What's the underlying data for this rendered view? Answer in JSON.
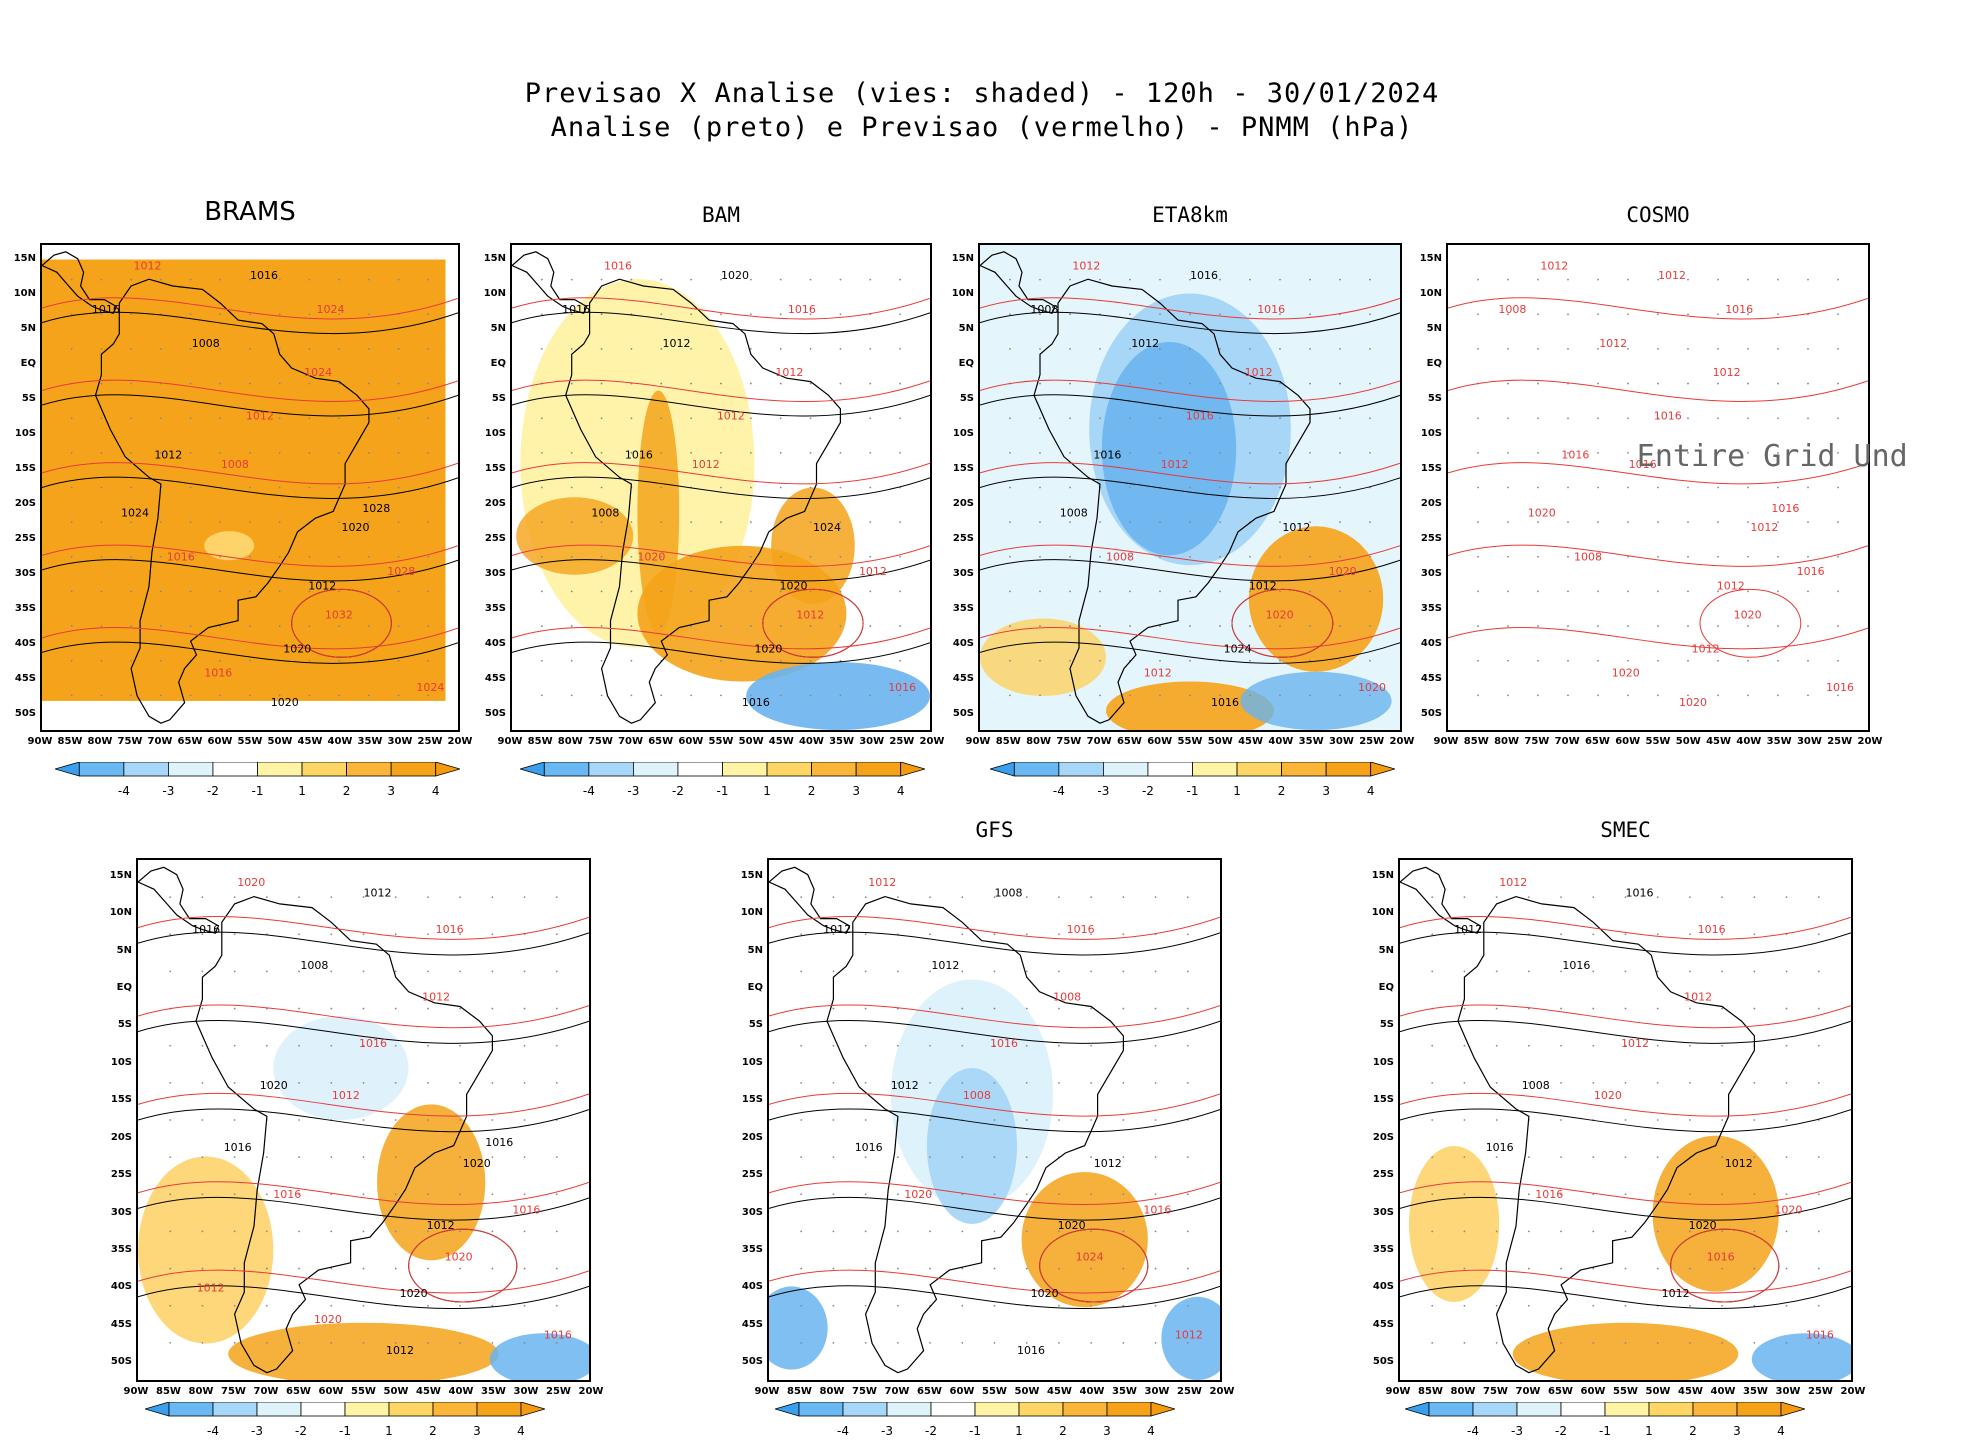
{
  "header": {
    "title_line1": "Previsao X Analise (vies: shaded) - 120h - 30/01/2024",
    "title_line2": "Analise (preto) e Previsao (vermelho) - PNMM (hPa)"
  },
  "axes": {
    "lat_labels": [
      "15N",
      "10N",
      "5N",
      "EQ",
      "5S",
      "10S",
      "15S",
      "20S",
      "25S",
      "30S",
      "35S",
      "40S",
      "45S",
      "50S"
    ],
    "lon_labels": [
      "90W",
      "85W",
      "80W",
      "75W",
      "70W",
      "65W",
      "60W",
      "55W",
      "50W",
      "45W",
      "40W",
      "35W",
      "30W",
      "25W",
      "20W"
    ]
  },
  "colorbar": {
    "labels": [
      "-4",
      "-3",
      "-2",
      "-1",
      "1",
      "2",
      "3",
      "4"
    ],
    "colors": [
      "#3aa0ee",
      "#6ab8f2",
      "#a6d6f8",
      "#dff3fb",
      "#ffffff",
      "#fff3a6",
      "#fdd666",
      "#fbb63a",
      "#f5a21a",
      "#f39a10"
    ]
  },
  "colors": {
    "analysis_contour": "#000000",
    "forecast_contour": "#e83a3a",
    "bias_strong_positive": "#f5a310",
    "coastline": "#000000"
  },
  "panels": [
    {
      "id": "brams",
      "title": "BRAMS",
      "style": "full-positive",
      "contour_labels": [
        "1012",
        "1016",
        "1024",
        "1016",
        "1024",
        "1008",
        "1012",
        "1012",
        "1008",
        "1024",
        "1016",
        "1020",
        "1028",
        "1012",
        "1032",
        "1020",
        "1024",
        "1020",
        "1016",
        "1028"
      ],
      "missing_message": ""
    },
    {
      "id": "bam",
      "title": "BAM",
      "style": "mixed-positive",
      "contour_labels": [
        "1016",
        "1020",
        "1016",
        "1016",
        "1012",
        "1012",
        "1012",
        "1016",
        "1012",
        "1008",
        "1020",
        "1024",
        "1012",
        "1020",
        "1012",
        "1020",
        "1016",
        "1016"
      ],
      "missing_message": ""
    },
    {
      "id": "eta8km",
      "title": "ETA8km",
      "style": "negative-inland",
      "contour_labels": [
        "1012",
        "1016",
        "1016",
        "1008",
        "1012",
        "1012",
        "1016",
        "1016",
        "1012",
        "1008",
        "1008",
        "1012",
        "1020",
        "1012",
        "1020",
        "1024",
        "1020",
        "1016",
        "1012"
      ],
      "missing_message": ""
    },
    {
      "id": "cosmo",
      "title": "COSMO",
      "style": "forecast-only",
      "contour_labels": [
        "1012",
        "1012",
        "1016",
        "1008",
        "1012",
        "1012",
        "1016",
        "1016",
        "1016",
        "1020",
        "1008",
        "1012",
        "1016",
        "1012",
        "1020",
        "1012",
        "1016",
        "1020",
        "1020",
        "1016"
      ],
      "missing_message": "Entire Grid Und"
    },
    {
      "id": "panel5",
      "title": "",
      "style": "mixed-weak",
      "contour_labels": [
        "1020",
        "1012",
        "1016",
        "1016",
        "1012",
        "1008",
        "1016",
        "1020",
        "1012",
        "1016",
        "1016",
        "1020",
        "1016",
        "1012",
        "1020",
        "1020",
        "1016",
        "1012",
        "1020",
        "1016",
        "1012"
      ],
      "missing_message": ""
    },
    {
      "id": "gfs",
      "title": "GFS",
      "style": "negative-moderate",
      "contour_labels": [
        "1012",
        "1008",
        "1016",
        "1012",
        "1008",
        "1012",
        "1016",
        "1012",
        "1008",
        "1016",
        "1020",
        "1012",
        "1016",
        "1020",
        "1024",
        "1020",
        "1012",
        "1016"
      ],
      "missing_message": ""
    },
    {
      "id": "smec",
      "title": "SMEC",
      "style": "positive-offshore",
      "contour_labels": [
        "1012",
        "1016",
        "1016",
        "1012",
        "1012",
        "1016",
        "1012",
        "1008",
        "1020",
        "1016",
        "1016",
        "1012",
        "1020",
        "1020",
        "1016",
        "1012",
        "1016"
      ],
      "missing_message": ""
    }
  ]
}
